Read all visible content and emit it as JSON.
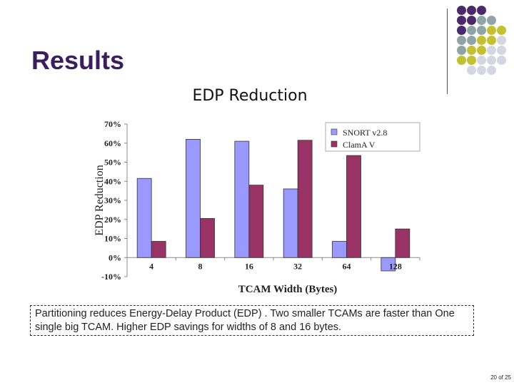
{
  "slide": {
    "title": "Results",
    "chart_heading": "EDP Reduction",
    "note": "Partitioning reduces Energy-Delay Product (EDP) . Two smaller TCAMs are faster than One single big TCAM. Higher EDP savings for widths of 8 and 16 bytes.",
    "page_number": "20 of 25"
  },
  "decor": {
    "dot_colors": {
      "purple": "#4b2a6b",
      "teal": "#8fa5a5",
      "olive": "#c2c22e",
      "gray": "#d6d6e3"
    },
    "dot_grid": [
      [
        "purple",
        "purple",
        "purple",
        "",
        ""
      ],
      [
        "purple",
        "purple",
        "teal",
        "teal",
        ""
      ],
      [
        "purple",
        "teal",
        "teal",
        "olive",
        "olive"
      ],
      [
        "teal",
        "teal",
        "olive",
        "olive",
        "gray"
      ],
      [
        "teal",
        "olive",
        "olive",
        "gray",
        "gray"
      ],
      [
        "olive",
        "olive",
        "gray",
        "gray",
        "gray"
      ],
      [
        "",
        "gray",
        "gray",
        "gray",
        ""
      ]
    ]
  },
  "chart_data": {
    "type": "bar",
    "title": "EDP Reduction",
    "xlabel": "TCAM Width (Bytes)",
    "ylabel": "EDP Reduction",
    "categories": [
      "4",
      "8",
      "16",
      "32",
      "64",
      "128"
    ],
    "series": [
      {
        "name": "SNORT v2.8",
        "color": "#9999ff",
        "values": [
          41.5,
          62,
          61,
          36,
          8.5,
          -7
        ]
      },
      {
        "name": "ClamA V",
        "color": "#993366",
        "values": [
          8.5,
          20.5,
          38,
          61.5,
          53.5,
          15
        ]
      }
    ],
    "ylim": [
      -10,
      70
    ],
    "yticks": [
      -10,
      0,
      10,
      20,
      30,
      40,
      50,
      60,
      70
    ],
    "ytick_labels": [
      "-10%",
      "0%",
      "10%",
      "20%",
      "30%",
      "40%",
      "50%",
      "60%",
      "70%"
    ],
    "legend_position": "top-right",
    "grid": false
  }
}
